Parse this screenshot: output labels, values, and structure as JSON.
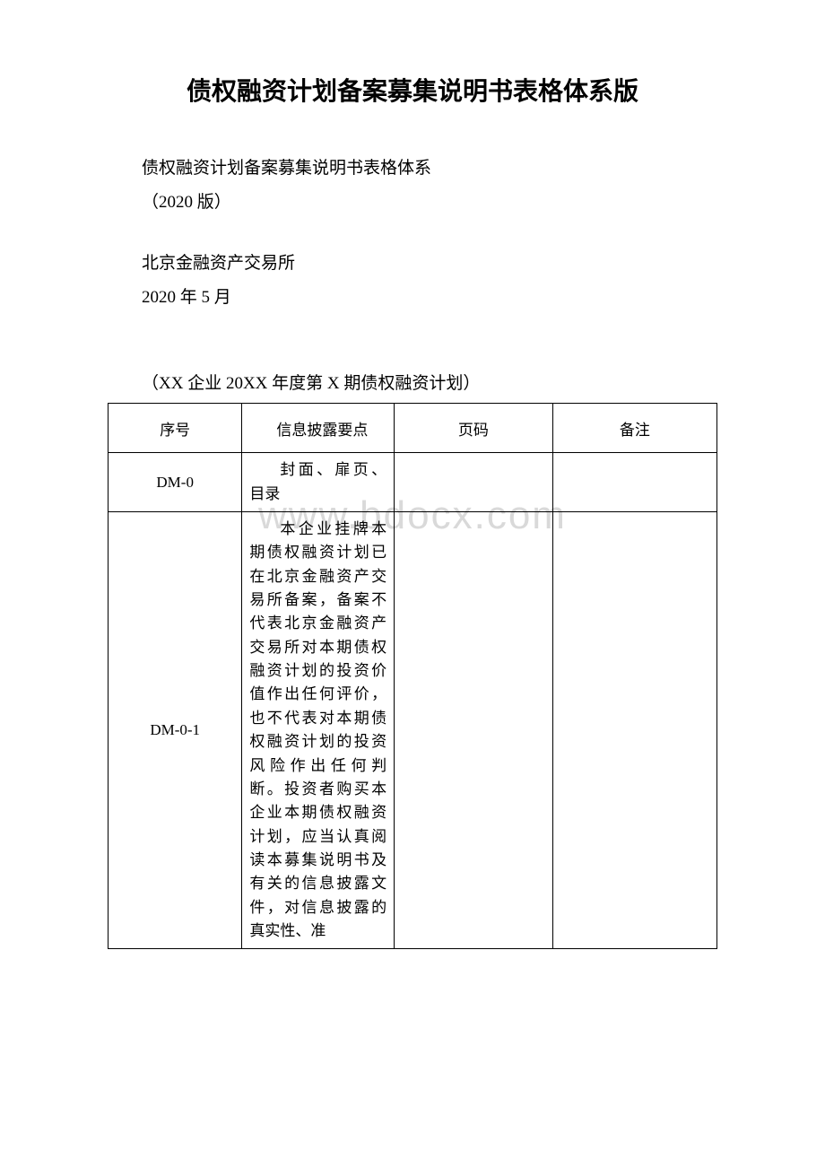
{
  "document": {
    "title": "债权融资计划备案募集说明书表格体系版",
    "subtitle": "债权融资计划备案募集说明书表格体系",
    "version": "（2020 版）",
    "publisher": "北京金融资产交易所",
    "date": "2020 年 5 月",
    "tableTitle": "（XX 企业 20XX 年度第 X 期债权融资计划）"
  },
  "watermark": "www.bdocx.com",
  "table": {
    "headers": {
      "seq": "序号",
      "info": "信息披露要点",
      "page": "页码",
      "notes": "备注"
    },
    "rows": [
      {
        "seq": "DM-0",
        "info": "封面、扉页、目录",
        "page": "",
        "notes": ""
      },
      {
        "seq": "DM-0-1",
        "info": "本企业挂牌本期债权融资计划已在北京金融资产交易所备案，备案不代表北京金融资产交易所对本期债权融资计划的投资价值作出任何评价，也不代表对本期债权融资计划的投资风险作出任何判断。投资者购买本企业本期债权融资计划，应当认真阅读本募集说明书及有关的信息披露文件，对信息披露的真实性、准",
        "page": "",
        "notes": ""
      }
    ]
  },
  "styling": {
    "background_color": "#ffffff",
    "text_color": "#000000",
    "border_color": "#000000",
    "watermark_color": "#d9d9d9",
    "title_fontsize": 28,
    "body_fontsize": 19,
    "table_fontsize": 17,
    "watermark_fontsize": 44,
    "font_family_title": "SimHei",
    "font_family_body": "SimSun"
  }
}
